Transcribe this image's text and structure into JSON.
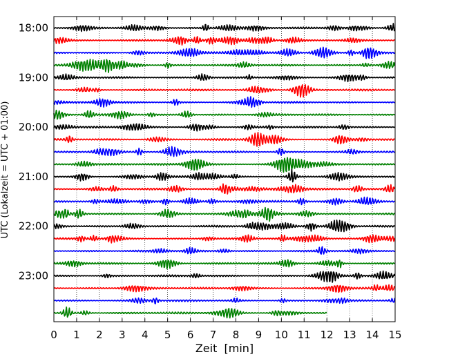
{
  "chart_data": {
    "type": "line",
    "title": "",
    "xlabel": "Zeit  [min]",
    "ylabel": "UTC (Lokalzeit = UTC + 01:00)",
    "xlim": [
      0,
      15
    ],
    "x_ticks": [
      0,
      1,
      2,
      3,
      4,
      5,
      6,
      7,
      8,
      9,
      10,
      11,
      12,
      13,
      14,
      15
    ],
    "x_tick_labels": [
      "0",
      "1",
      "2",
      "3",
      "4",
      "5",
      "6",
      "7",
      "8",
      "9",
      "10",
      "11",
      "12",
      "13",
      "14",
      "15"
    ],
    "y_tick_labels": [
      "18:00",
      "19:00",
      "20:00",
      "21:00",
      "22:00",
      "23:00"
    ],
    "y_tick_row_index": [
      0,
      4,
      8,
      12,
      16,
      20
    ],
    "grid": "vertical dotted lines at each minute",
    "trace_interval_minutes": 15,
    "trace_colors_cycle": [
      "#000000",
      "#ff0000",
      "#0000ff",
      "#008000"
    ],
    "traces": [
      {
        "start": "18:00",
        "color": "#000000",
        "end_min": 15
      },
      {
        "start": "18:15",
        "color": "#ff0000",
        "end_min": 15
      },
      {
        "start": "18:30",
        "color": "#0000ff",
        "end_min": 15
      },
      {
        "start": "18:45",
        "color": "#008000",
        "end_min": 15
      },
      {
        "start": "19:00",
        "color": "#000000",
        "end_min": 15
      },
      {
        "start": "19:15",
        "color": "#ff0000",
        "end_min": 15
      },
      {
        "start": "19:30",
        "color": "#0000ff",
        "end_min": 15
      },
      {
        "start": "19:45",
        "color": "#008000",
        "end_min": 15
      },
      {
        "start": "20:00",
        "color": "#000000",
        "end_min": 15
      },
      {
        "start": "20:15",
        "color": "#ff0000",
        "end_min": 15
      },
      {
        "start": "20:30",
        "color": "#0000ff",
        "end_min": 15
      },
      {
        "start": "20:45",
        "color": "#008000",
        "end_min": 15
      },
      {
        "start": "21:00",
        "color": "#000000",
        "end_min": 15
      },
      {
        "start": "21:15",
        "color": "#ff0000",
        "end_min": 15
      },
      {
        "start": "21:30",
        "color": "#0000ff",
        "end_min": 15
      },
      {
        "start": "21:45",
        "color": "#008000",
        "end_min": 15
      },
      {
        "start": "22:00",
        "color": "#000000",
        "end_min": 15
      },
      {
        "start": "22:15",
        "color": "#ff0000",
        "end_min": 15
      },
      {
        "start": "22:30",
        "color": "#0000ff",
        "end_min": 15
      },
      {
        "start": "22:45",
        "color": "#008000",
        "end_min": 15
      },
      {
        "start": "23:00",
        "color": "#000000",
        "end_min": 15
      },
      {
        "start": "23:15",
        "color": "#ff0000",
        "end_min": 15
      },
      {
        "start": "23:30",
        "color": "#0000ff",
        "end_min": 15
      },
      {
        "start": "23:45",
        "color": "#008000",
        "end_min": 12
      }
    ]
  }
}
